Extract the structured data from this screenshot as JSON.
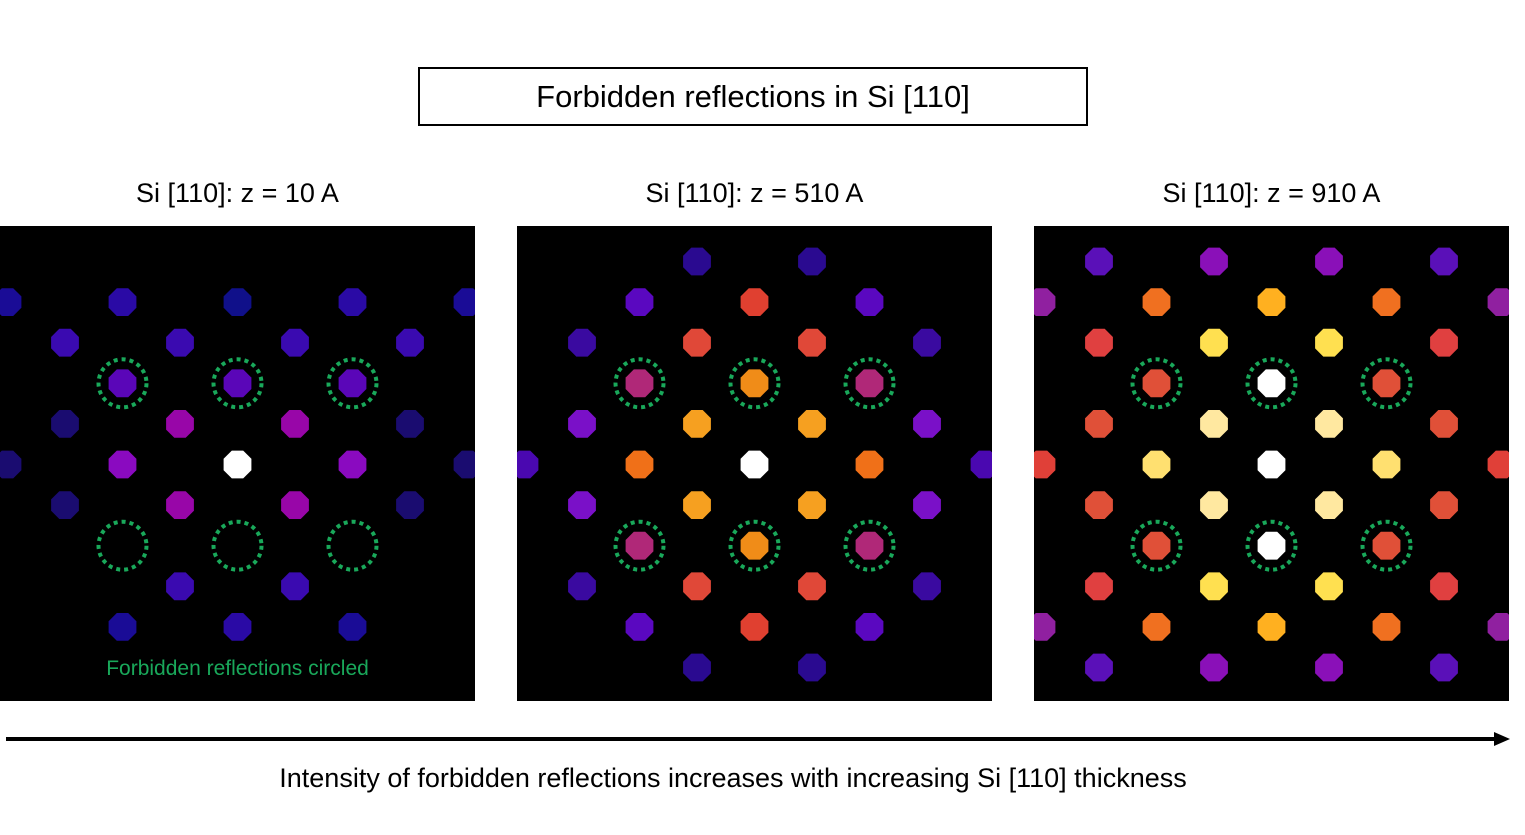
{
  "title": "Forbidden reflections in Si [110]",
  "panels": [
    {
      "label": "Si [110]: z = 10 A",
      "note": "Forbidden reflections circled",
      "spots": [
        {
          "col": 0,
          "row": -4,
          "color": "#10108a"
        },
        {
          "col": -1,
          "row": -4,
          "color": "#2a0aa5"
        },
        {
          "col": 1,
          "row": -4,
          "color": "#2a0aa5"
        },
        {
          "col": -2,
          "row": -4,
          "color": "#1a0c96"
        },
        {
          "col": 2,
          "row": -4,
          "color": "#1a0c96"
        },
        {
          "col": -0.5,
          "row": -3,
          "color": "#3a0ab0"
        },
        {
          "col": 0.5,
          "row": -3,
          "color": "#3a0ab0"
        },
        {
          "col": -1.5,
          "row": -3,
          "color": "#3a0ab0"
        },
        {
          "col": 1.5,
          "row": -3,
          "color": "#3a0ab0"
        },
        {
          "col": -1,
          "row": -2,
          "color": "#5a06b8"
        },
        {
          "col": 0,
          "row": -2,
          "color": "#5a06b8"
        },
        {
          "col": 1,
          "row": -2,
          "color": "#5a06b8"
        },
        {
          "col": -0.5,
          "row": -1,
          "color": "#9806a8"
        },
        {
          "col": 0.5,
          "row": -1,
          "color": "#9806a8"
        },
        {
          "col": -1.5,
          "row": -1,
          "color": "#1a0c70"
        },
        {
          "col": 1.5,
          "row": -1,
          "color": "#1a0c70"
        },
        {
          "col": 0,
          "row": 0,
          "color": "#ffffff"
        },
        {
          "col": -1,
          "row": 0,
          "color": "#8a0ac0"
        },
        {
          "col": 1,
          "row": 0,
          "color": "#8a0ac0"
        },
        {
          "col": -2,
          "row": 0,
          "color": "#1a0c70"
        },
        {
          "col": 2,
          "row": 0,
          "color": "#1a0c70"
        },
        {
          "col": -0.5,
          "row": 1,
          "color": "#9806a8"
        },
        {
          "col": 0.5,
          "row": 1,
          "color": "#9806a8"
        },
        {
          "col": -1.5,
          "row": 1,
          "color": "#1a0c70"
        },
        {
          "col": 1.5,
          "row": 1,
          "color": "#1a0c70"
        },
        {
          "col": -0.5,
          "row": 3,
          "color": "#3a0ab0"
        },
        {
          "col": 0.5,
          "row": 3,
          "color": "#3a0ab0"
        },
        {
          "col": -1,
          "row": 4,
          "color": "#1a0c96"
        },
        {
          "col": 0,
          "row": 4,
          "color": "#2a0aa5"
        },
        {
          "col": 1,
          "row": 4,
          "color": "#1a0c96"
        }
      ]
    },
    {
      "label": "Si [110]: z = 510 A",
      "note": "",
      "spots": [
        {
          "col": -0.5,
          "row": -5,
          "color": "#2a0a90"
        },
        {
          "col": 0.5,
          "row": -5,
          "color": "#2a0a90"
        },
        {
          "col": -1,
          "row": -4,
          "color": "#5a08c0"
        },
        {
          "col": 0,
          "row": -4,
          "color": "#e04030"
        },
        {
          "col": 1,
          "row": -4,
          "color": "#5a08c0"
        },
        {
          "col": -1.5,
          "row": -3,
          "color": "#3a0aa0"
        },
        {
          "col": -0.5,
          "row": -3,
          "color": "#e04838"
        },
        {
          "col": 0.5,
          "row": -3,
          "color": "#e04838"
        },
        {
          "col": 1.5,
          "row": -3,
          "color": "#3a0aa0"
        },
        {
          "col": -1,
          "row": -2,
          "color": "#b02878"
        },
        {
          "col": 0,
          "row": -2,
          "color": "#f08c18"
        },
        {
          "col": 1,
          "row": -2,
          "color": "#b02878"
        },
        {
          "col": -1.5,
          "row": -1,
          "color": "#7a10c8"
        },
        {
          "col": -0.5,
          "row": -1,
          "color": "#f6a020"
        },
        {
          "col": 0.5,
          "row": -1,
          "color": "#f6a020"
        },
        {
          "col": 1.5,
          "row": -1,
          "color": "#7a10c8"
        },
        {
          "col": -2,
          "row": 0,
          "color": "#4a08b0"
        },
        {
          "col": -1,
          "row": 0,
          "color": "#f07018"
        },
        {
          "col": 0,
          "row": 0,
          "color": "#ffffff"
        },
        {
          "col": 1,
          "row": 0,
          "color": "#f07018"
        },
        {
          "col": 2,
          "row": 0,
          "color": "#4a08b0"
        },
        {
          "col": -1.5,
          "row": 1,
          "color": "#7a10c8"
        },
        {
          "col": -0.5,
          "row": 1,
          "color": "#f6a020"
        },
        {
          "col": 0.5,
          "row": 1,
          "color": "#f6a020"
        },
        {
          "col": 1.5,
          "row": 1,
          "color": "#7a10c8"
        },
        {
          "col": -1,
          "row": 2,
          "color": "#b02878"
        },
        {
          "col": 0,
          "row": 2,
          "color": "#f08c18"
        },
        {
          "col": 1,
          "row": 2,
          "color": "#b02878"
        },
        {
          "col": -1.5,
          "row": 3,
          "color": "#3a0aa0"
        },
        {
          "col": -0.5,
          "row": 3,
          "color": "#e04838"
        },
        {
          "col": 0.5,
          "row": 3,
          "color": "#e04838"
        },
        {
          "col": 1.5,
          "row": 3,
          "color": "#3a0aa0"
        },
        {
          "col": -1,
          "row": 4,
          "color": "#5a08c0"
        },
        {
          "col": 0,
          "row": 4,
          "color": "#e04030"
        },
        {
          "col": 1,
          "row": 4,
          "color": "#5a08c0"
        },
        {
          "col": -0.5,
          "row": 5,
          "color": "#2a0a90"
        },
        {
          "col": 0.5,
          "row": 5,
          "color": "#2a0a90"
        }
      ]
    },
    {
      "label": "Si [110]: z = 910 A",
      "note": "",
      "spots": [
        {
          "col": -1.5,
          "row": -5,
          "color": "#5a10b8"
        },
        {
          "col": -0.5,
          "row": -5,
          "color": "#8a10b8"
        },
        {
          "col": 0.5,
          "row": -5,
          "color": "#8a10b8"
        },
        {
          "col": 1.5,
          "row": -5,
          "color": "#5a10b8"
        },
        {
          "col": -2,
          "row": -4,
          "color": "#9020a0"
        },
        {
          "col": -1,
          "row": -4,
          "color": "#f07020"
        },
        {
          "col": 0,
          "row": -4,
          "color": "#ffb020"
        },
        {
          "col": 1,
          "row": -4,
          "color": "#f07020"
        },
        {
          "col": 2,
          "row": -4,
          "color": "#9020a0"
        },
        {
          "col": -1.5,
          "row": -3,
          "color": "#e04040"
        },
        {
          "col": -0.5,
          "row": -3,
          "color": "#ffe050"
        },
        {
          "col": 0.5,
          "row": -3,
          "color": "#ffe050"
        },
        {
          "col": 1.5,
          "row": -3,
          "color": "#e04040"
        },
        {
          "col": -1,
          "row": -2,
          "color": "#e05038"
        },
        {
          "col": 0,
          "row": -2,
          "color": "#ffffff"
        },
        {
          "col": 1,
          "row": -2,
          "color": "#e05038"
        },
        {
          "col": -1.5,
          "row": -1,
          "color": "#e05038"
        },
        {
          "col": -0.5,
          "row": -1,
          "color": "#ffe8a0"
        },
        {
          "col": 0.5,
          "row": -1,
          "color": "#ffe8a0"
        },
        {
          "col": 1.5,
          "row": -1,
          "color": "#e05038"
        },
        {
          "col": -2,
          "row": 0,
          "color": "#e04038"
        },
        {
          "col": -1,
          "row": 0,
          "color": "#ffe070"
        },
        {
          "col": 0,
          "row": 0,
          "color": "#ffffff"
        },
        {
          "col": 1,
          "row": 0,
          "color": "#ffe070"
        },
        {
          "col": 2,
          "row": 0,
          "color": "#e04038"
        },
        {
          "col": -1.5,
          "row": 1,
          "color": "#e05038"
        },
        {
          "col": -0.5,
          "row": 1,
          "color": "#ffe8a0"
        },
        {
          "col": 0.5,
          "row": 1,
          "color": "#ffe8a0"
        },
        {
          "col": 1.5,
          "row": 1,
          "color": "#e05038"
        },
        {
          "col": -1,
          "row": 2,
          "color": "#e05038"
        },
        {
          "col": 0,
          "row": 2,
          "color": "#ffffff"
        },
        {
          "col": 1,
          "row": 2,
          "color": "#e05038"
        },
        {
          "col": -1.5,
          "row": 3,
          "color": "#e04040"
        },
        {
          "col": -0.5,
          "row": 3,
          "color": "#ffe050"
        },
        {
          "col": 0.5,
          "row": 3,
          "color": "#ffe050"
        },
        {
          "col": 1.5,
          "row": 3,
          "color": "#e04040"
        },
        {
          "col": -2,
          "row": 4,
          "color": "#9020a0"
        },
        {
          "col": -1,
          "row": 4,
          "color": "#f07020"
        },
        {
          "col": 0,
          "row": 4,
          "color": "#ffb020"
        },
        {
          "col": 1,
          "row": 4,
          "color": "#f07020"
        },
        {
          "col": 2,
          "row": 4,
          "color": "#9020a0"
        },
        {
          "col": -1.5,
          "row": 5,
          "color": "#5a10b8"
        },
        {
          "col": -0.5,
          "row": 5,
          "color": "#8a10b8"
        },
        {
          "col": 0.5,
          "row": 5,
          "color": "#8a10b8"
        },
        {
          "col": 1.5,
          "row": 5,
          "color": "#5a10b8"
        }
      ]
    }
  ],
  "forbidden_reflections": [
    {
      "col": -1,
      "row": -2
    },
    {
      "col": 0,
      "row": -2
    },
    {
      "col": 1,
      "row": -2
    },
    {
      "col": -1,
      "row": 2
    },
    {
      "col": 0,
      "row": 2
    },
    {
      "col": 1,
      "row": 2
    }
  ],
  "circle_color": "#19a85a",
  "caption": "Intensity of forbidden reflections increases with increasing Si [110] thickness"
}
